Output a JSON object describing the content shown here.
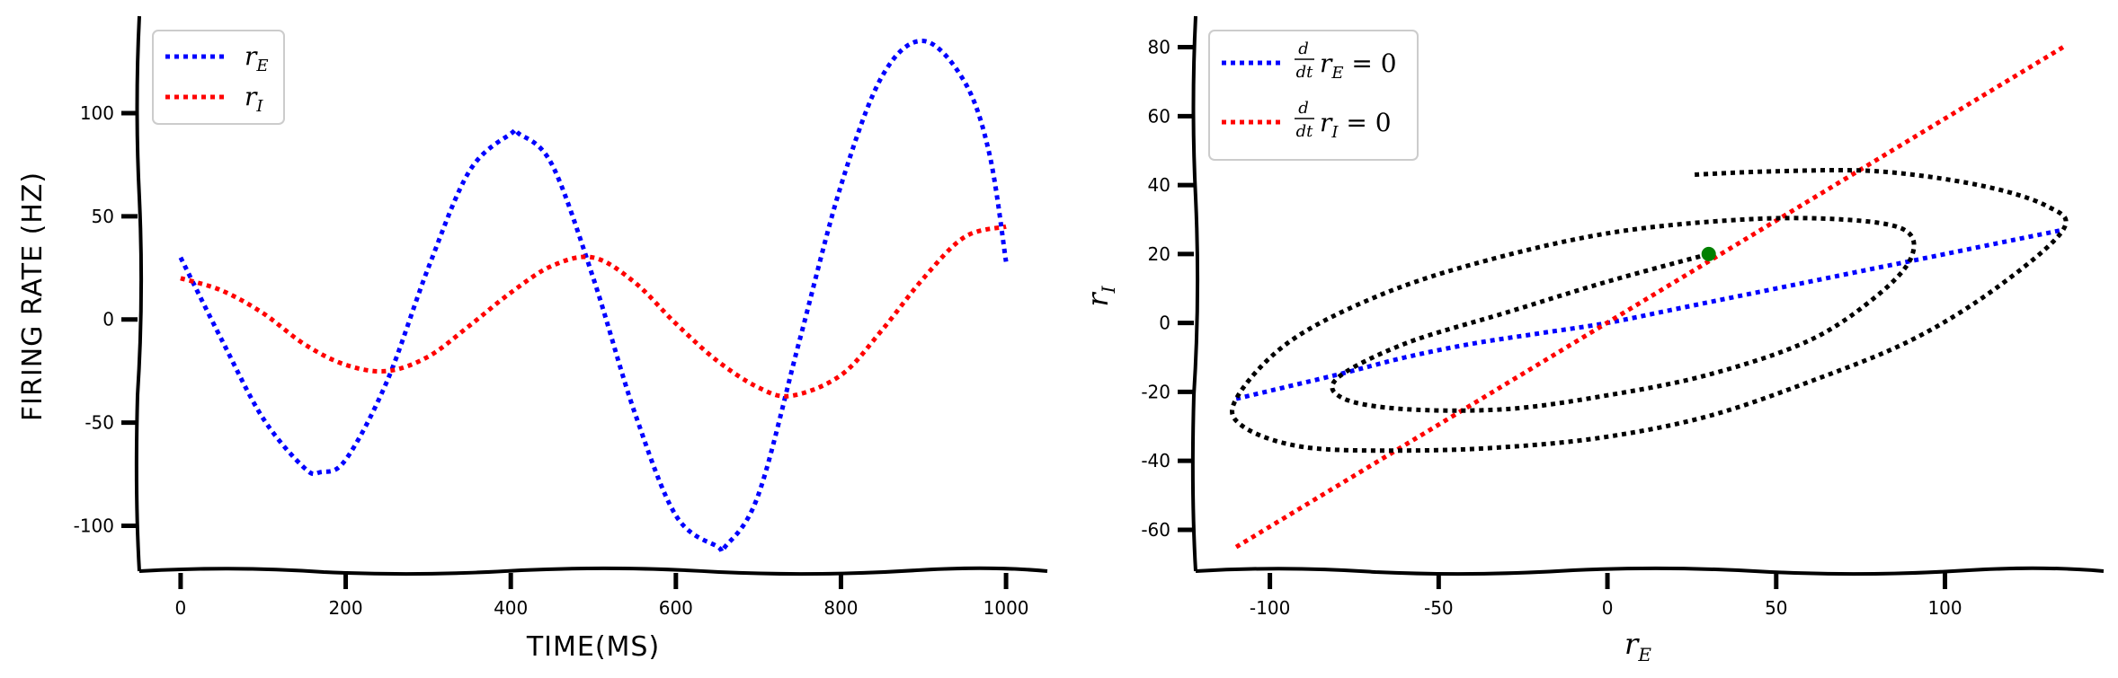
{
  "chart_data": [
    {
      "type": "line",
      "title": "",
      "xlabel": "TIME(MS)",
      "ylabel": "FIRING RATE (HZ)",
      "xlim": [
        -50,
        1050
      ],
      "ylim": [
        -122,
        147
      ],
      "xticks": [
        0,
        200,
        400,
        600,
        800,
        1000
      ],
      "xtick_labels": [
        "0",
        "200",
        "400",
        "600",
        "800",
        "1000"
      ],
      "yticks": [
        -100,
        -50,
        0,
        50,
        100
      ],
      "ytick_labels": [
        "-100",
        "-50",
        "0",
        "50",
        "100"
      ],
      "legend_position": "top-left",
      "series": [
        {
          "name": "r_E",
          "label_main": "r",
          "label_sub": "E",
          "color": "#0000ff",
          "style": "dotted",
          "x": [
            0,
            50,
            100,
            150,
            170,
            200,
            250,
            300,
            350,
            400,
            410,
            450,
            500,
            550,
            600,
            650,
            660,
            700,
            750,
            800,
            850,
            900,
            950,
            980,
            1000
          ],
          "y": [
            30,
            -10,
            -48,
            -72,
            -74,
            -68,
            -30,
            25,
            72,
            90,
            90,
            75,
            20,
            -45,
            -95,
            -110,
            -110,
            -85,
            -10,
            65,
            118,
            135,
            115,
            80,
            28
          ]
        },
        {
          "name": "r_I",
          "label_main": "r",
          "label_sub": "I",
          "color": "#ff0000",
          "style": "dotted",
          "x": [
            0,
            50,
            100,
            150,
            200,
            250,
            300,
            350,
            400,
            450,
            500,
            550,
            600,
            650,
            700,
            740,
            800,
            850,
            900,
            950,
            1000
          ],
          "y": [
            20,
            14,
            3,
            -12,
            -22,
            -25,
            -18,
            -3,
            13,
            26,
            30,
            18,
            -2,
            -20,
            -33,
            -37,
            -27,
            -5,
            20,
            40,
            45
          ]
        }
      ]
    },
    {
      "type": "line",
      "title": "",
      "xlabel": "r_E",
      "xlabel_main": "r",
      "xlabel_sub": "E",
      "ylabel": "r_I",
      "ylabel_main": "r",
      "ylabel_sub": "I",
      "xlim": [
        -122,
        147
      ],
      "ylim": [
        -72,
        89
      ],
      "xticks": [
        -100,
        -50,
        0,
        50,
        100
      ],
      "xtick_labels": [
        "-100",
        "-50",
        "0",
        "50",
        "100"
      ],
      "yticks": [
        -60,
        -40,
        -20,
        0,
        20,
        40,
        60,
        80
      ],
      "ytick_labels": [
        "-60",
        "-40",
        "-20",
        "0",
        "20",
        "40",
        "60",
        "80"
      ],
      "legend_position": "top-left",
      "series": [
        {
          "name": "d/dt r_E = 0",
          "frac_num": "d",
          "frac_den": "dt",
          "label_main": "r",
          "label_sub": "E",
          "label_tail": " = 0",
          "color": "#0000ff",
          "style": "dotted",
          "x": [
            -110,
            -80,
            -60,
            -40,
            -20,
            0,
            20,
            40,
            60,
            80,
            100,
            120,
            135
          ],
          "y": [
            -22,
            -15,
            -10,
            -6,
            -3,
            0,
            4,
            8,
            12,
            16,
            20,
            24,
            27
          ]
        },
        {
          "name": "d/dt r_I = 0",
          "frac_num": "d",
          "frac_den": "dt",
          "label_main": "r",
          "label_sub": "I",
          "label_tail": " = 0",
          "color": "#ff0000",
          "style": "dotted",
          "x": [
            -110,
            135
          ],
          "y": [
            -65,
            80
          ]
        },
        {
          "name": "trajectory",
          "color": "#000000",
          "style": "dotted",
          "x": [
            30,
            0,
            -30,
            -60,
            -80,
            -78,
            -60,
            -30,
            0,
            30,
            60,
            80,
            90,
            88,
            70,
            40,
            0,
            -40,
            -70,
            -95,
            -110,
            -108,
            -90,
            -60,
            -30,
            0,
            30,
            60,
            90,
            115,
            135,
            130,
            110,
            80,
            50,
            25
          ],
          "y": [
            20,
            12,
            3,
            -6,
            -16,
            -22,
            -25,
            -25,
            -21,
            -15,
            -5,
            8,
            19,
            27,
            30,
            30,
            26,
            17,
            7,
            -6,
            -22,
            -30,
            -36,
            -37,
            -36,
            -33,
            -27,
            -17,
            -5,
            10,
            27,
            34,
            40,
            44,
            44,
            43
          ]
        },
        {
          "name": "start-point",
          "type": "scatter",
          "color": "#008000",
          "x": [
            30
          ],
          "y": [
            20
          ]
        }
      ]
    }
  ]
}
